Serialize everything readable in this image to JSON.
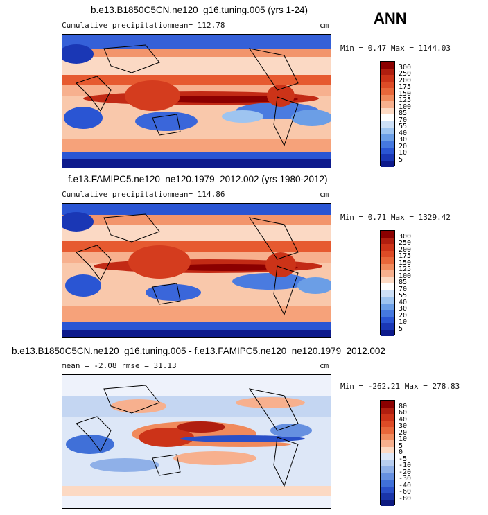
{
  "season_label": "ANN",
  "panels": [
    {
      "title": "b.e13.B1850C5CN.ne120_g16.tuning.005 (yrs 1-24)",
      "variable": "Cumulative precipitation",
      "stat_text": "mean=  112.78",
      "units": "cm",
      "minmax": "Min =    0.47 Max = 1144.03",
      "colorbar_labels": [
        "300",
        "250",
        "200",
        "175",
        "150",
        "125",
        "100",
        "85",
        "70",
        "55",
        "40",
        "30",
        "20",
        "10",
        "5"
      ],
      "colorbar_colors": [
        "#8b0000",
        "#b01e0f",
        "#cc3318",
        "#dd4b26",
        "#e8673a",
        "#f08a5c",
        "#f7b08e",
        "#fcd9c3",
        "#ffffff",
        "#cde0f7",
        "#9ec4f0",
        "#6b9ee6",
        "#4578df",
        "#2a55d3",
        "#1a37b5",
        "#0d1a8c"
      ]
    },
    {
      "title": "f.e13.FAMIPC5.ne120_ne120.1979_2012.002 (yrs 1980-2012)",
      "variable": "Cumulative precipitation",
      "stat_text": "mean=  114.86",
      "units": "cm",
      "minmax": "Min =    0.71 Max = 1329.42",
      "colorbar_labels": [
        "300",
        "250",
        "200",
        "175",
        "150",
        "125",
        "100",
        "85",
        "70",
        "55",
        "40",
        "30",
        "20",
        "10",
        "5"
      ],
      "colorbar_colors": [
        "#8b0000",
        "#b01e0f",
        "#cc3318",
        "#dd4b26",
        "#e8673a",
        "#f08a5c",
        "#f7b08e",
        "#fcd9c3",
        "#ffffff",
        "#cde0f7",
        "#9ec4f0",
        "#6b9ee6",
        "#4578df",
        "#2a55d3",
        "#1a37b5",
        "#0d1a8c"
      ]
    },
    {
      "title": "b.e13.B1850C5CN.ne120_g16.tuning.005 - f.e13.FAMIPC5.ne120_ne120.1979_2012.002",
      "stat_text": "mean =  -2.08          rmse =   31.13",
      "units": "cm",
      "minmax": "Min = -262.21 Max =  278.83",
      "colorbar_labels": [
        "80",
        "60",
        "40",
        "30",
        "20",
        "10",
        "5",
        "0",
        "-5",
        "-10",
        "-20",
        "-30",
        "-40",
        "-60",
        "-80"
      ],
      "colorbar_colors": [
        "#8b0000",
        "#b01e0f",
        "#cc3318",
        "#dd4b26",
        "#e8673a",
        "#f08a5c",
        "#f7b08e",
        "#fcd9c3",
        "#dde7f7",
        "#b7cdef",
        "#8fb0e8",
        "#6690e0",
        "#4070d8",
        "#2a50c8",
        "#1a35a8",
        "#0d1a80"
      ]
    }
  ]
}
